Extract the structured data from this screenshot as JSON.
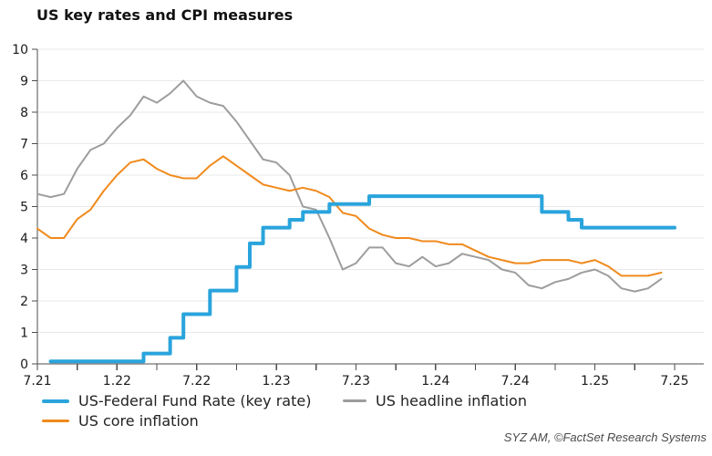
{
  "title": "US key rates and CPI measures",
  "attribution": "SYZ AM, ©FactSet Research Systems",
  "colors": {
    "fed_funds_blue": "#2aa4dc",
    "headline_inflation_gray": "#9d9d9d",
    "core_inflation_orange": "#f08a1d",
    "gridline": "#e9e9e9",
    "axis": "#4d4d4d",
    "tick_label": "#1a1a1a",
    "background": "#ffffff"
  },
  "legend": {
    "position": "bottom-left",
    "items": [
      {
        "id": "fed_funds",
        "label": "US-Federal Fund Rate (key rate)"
      },
      {
        "id": "headline",
        "label": "US headline inflation"
      },
      {
        "id": "core",
        "label": "US core inflation"
      }
    ]
  },
  "chart_data": {
    "type": "line",
    "title": "US key rates and CPI measures",
    "xlabel": "",
    "ylabel": "",
    "grid": "horizontal",
    "ylim": [
      0,
      10
    ],
    "y_tick_step": 1,
    "x_unit": "month",
    "x_axis_span_months": 50.2,
    "x_minor_tick_every_months": 3,
    "x_major_tick_every_months": 6,
    "x_tick_labels": [
      "7.21",
      "1.22",
      "7.22",
      "1.23",
      "7.23",
      "1.24",
      "7.24",
      "1.25",
      "7.25"
    ],
    "x_months": [
      "2021-07",
      "2021-08",
      "2021-09",
      "2021-10",
      "2021-11",
      "2021-12",
      "2022-01",
      "2022-02",
      "2022-03",
      "2022-04",
      "2022-05",
      "2022-06",
      "2022-07",
      "2022-08",
      "2022-09",
      "2022-10",
      "2022-11",
      "2022-12",
      "2023-01",
      "2023-02",
      "2023-03",
      "2023-04",
      "2023-05",
      "2023-06",
      "2023-07",
      "2023-08",
      "2023-09",
      "2023-10",
      "2023-11",
      "2023-12",
      "2024-01",
      "2024-02",
      "2024-03",
      "2024-04",
      "2024-05",
      "2024-06",
      "2024-07",
      "2024-08",
      "2024-09",
      "2024-10",
      "2024-11",
      "2024-12",
      "2025-01",
      "2025-02",
      "2025-03",
      "2025-04",
      "2025-05",
      "2025-06",
      "2025-07"
    ],
    "series": [
      {
        "id": "fed_funds",
        "name": "US-Federal Fund Rate (key rate)",
        "color": "#2aa4dc",
        "width": 4,
        "render": "step",
        "values": [
          null,
          0.08,
          0.08,
          0.08,
          0.08,
          0.08,
          0.08,
          0.08,
          0.33,
          0.33,
          0.83,
          1.58,
          1.58,
          2.33,
          2.33,
          3.08,
          3.83,
          4.33,
          4.33,
          4.58,
          4.83,
          4.83,
          5.08,
          5.08,
          5.08,
          5.33,
          5.33,
          5.33,
          5.33,
          5.33,
          5.33,
          5.33,
          5.33,
          5.33,
          5.33,
          5.33,
          5.33,
          5.33,
          4.83,
          4.83,
          4.58,
          4.33,
          4.33,
          4.33,
          4.33,
          4.33,
          4.33,
          4.33,
          4.33
        ]
      },
      {
        "id": "headline",
        "name": "US headline inflation",
        "color": "#9d9d9d",
        "width": 2,
        "render": "line",
        "values": [
          5.4,
          5.3,
          5.4,
          6.2,
          6.8,
          7.0,
          7.5,
          7.9,
          8.5,
          8.3,
          8.6,
          9.0,
          8.5,
          8.3,
          8.2,
          7.7,
          7.1,
          6.5,
          6.4,
          6.0,
          5.0,
          4.9,
          4.0,
          3.0,
          3.2,
          3.7,
          3.7,
          3.2,
          3.1,
          3.4,
          3.1,
          3.2,
          3.5,
          3.4,
          3.3,
          3.0,
          2.9,
          2.5,
          2.4,
          2.6,
          2.7,
          2.9,
          3.0,
          2.8,
          2.4,
          2.3,
          2.4,
          2.7,
          null
        ]
      },
      {
        "id": "core",
        "name": "US core inflation",
        "color": "#f08a1d",
        "width": 2,
        "render": "line",
        "values": [
          4.3,
          4.0,
          4.0,
          4.6,
          4.9,
          5.5,
          6.0,
          6.4,
          6.5,
          6.2,
          6.0,
          5.9,
          5.9,
          6.3,
          6.6,
          6.3,
          6.0,
          5.7,
          5.6,
          5.5,
          5.6,
          5.5,
          5.3,
          4.8,
          4.7,
          4.3,
          4.1,
          4.0,
          4.0,
          3.9,
          3.9,
          3.8,
          3.8,
          3.6,
          3.4,
          3.3,
          3.2,
          3.2,
          3.3,
          3.3,
          3.3,
          3.2,
          3.3,
          3.1,
          2.8,
          2.8,
          2.8,
          2.9,
          null
        ]
      }
    ]
  }
}
